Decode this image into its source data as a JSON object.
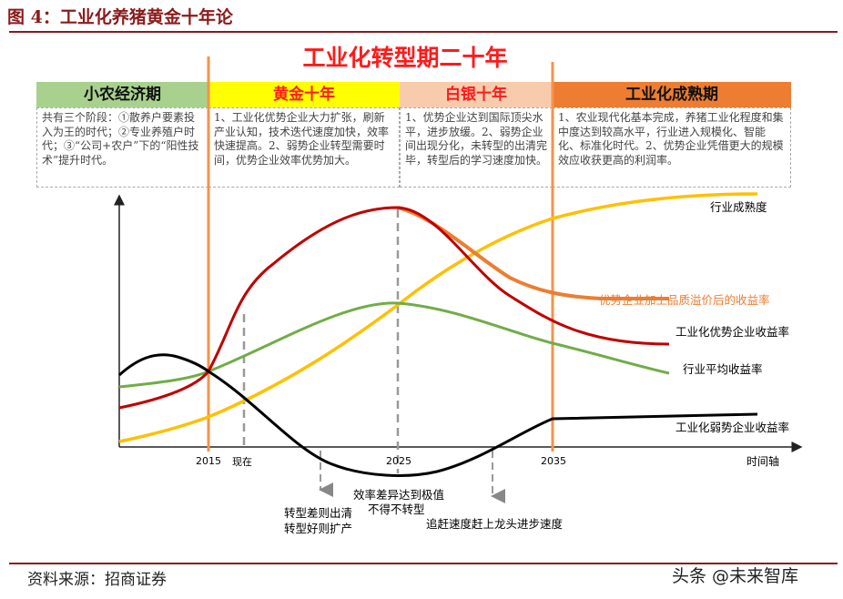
{
  "figure_title": "图 4：工业化养猪黄金十年论",
  "main_title": "工业化转型期二十年",
  "phases": [
    {
      "label": "小农经济期",
      "bg": "#a9d18e",
      "color": "#111",
      "desc": "共有三个阶段：①散养户要素投入为王的时代；②专业养殖户时代；③“公司+农户”下的“阳性技术”提升时代。"
    },
    {
      "label": "黄金十年",
      "bg": "#ffff00",
      "color": "#ff1a1a",
      "desc": "1、工业化优势企业大力扩张，刷新产业认知，技术迭代速度加快，效率快速提高。2、弱势企业转型需要时间，优势企业效率优势加大。"
    },
    {
      "label": "白银十年",
      "bg": "#f8cbad",
      "color": "#ff1a1a",
      "desc": "1、优势企业达到国际顶尖水平，进步放缓。2、弱势企业间出现分化，未转型的出清完毕，转型后的学习速度加快。"
    },
    {
      "label": "工业化成熟期",
      "bg": "#ed7d31",
      "color": "#111",
      "desc": "1、农业现代化基本完成，养猪工业化程度和集中度达到较高水平，行业进入规模化、智能化、标准化时代。2、优势企业凭借更大的规模效应收获更高的利润率。"
    }
  ],
  "axis": {
    "ticks": [
      "2015",
      "现在",
      "2025",
      "2035"
    ],
    "label": "时间轴"
  },
  "curves": [
    {
      "label": "行业成熟度",
      "color": "#ffc000"
    },
    {
      "label": "优势企业加上品质溢价后的收益率",
      "color": "#ed7d31"
    },
    {
      "label": "工业化优势企业收益率",
      "color": "#c00000"
    },
    {
      "label": "行业平均收益率",
      "color": "#70ad47"
    },
    {
      "label": "工业化弱势企业收益率",
      "color": "#000000"
    }
  ],
  "annotations": {
    "a1_line1": "转型差则出清",
    "a1_line2": "转型好则扩产",
    "a2_line1": "效率差异达到极值",
    "a2_line2": "不得不转型",
    "a3": "追赶速度赶上龙头进步速度"
  },
  "source": "资料来源：招商证券",
  "watermark": "头条 @未来智库"
}
